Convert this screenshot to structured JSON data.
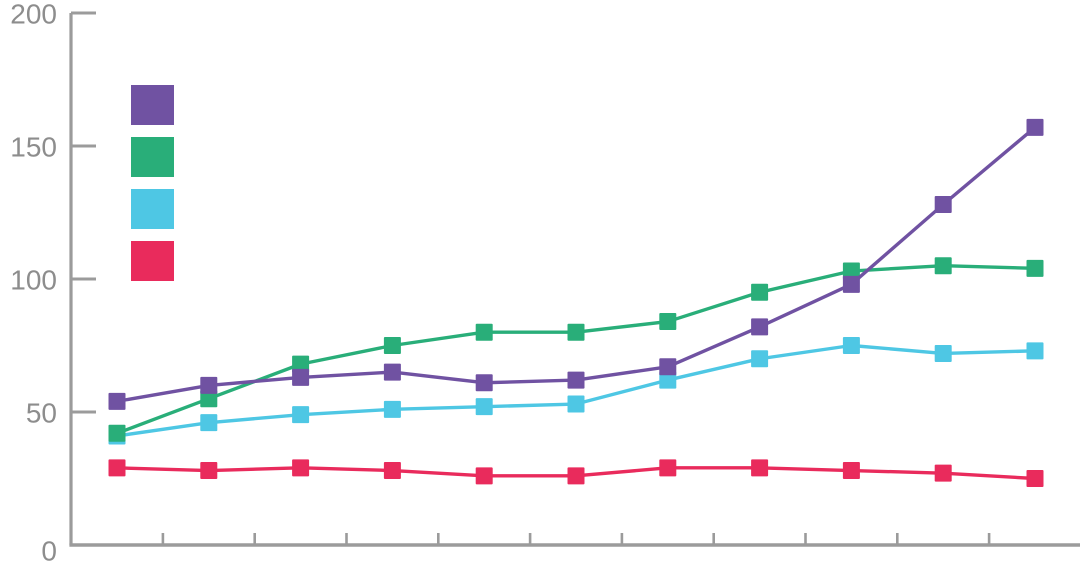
{
  "chart_data": {
    "type": "line",
    "title": "",
    "subtitle": "",
    "xlabel": "",
    "ylabel": "",
    "x": [
      1,
      2,
      3,
      4,
      5,
      6,
      7,
      8,
      9,
      10,
      11
    ],
    "x_tick_labels": [],
    "ylim": [
      0,
      200
    ],
    "y_ticks": [
      0,
      50,
      100,
      150,
      200
    ],
    "grid": false,
    "marker": "square",
    "legend": {
      "position": "top-left",
      "text_labels_visible": false
    },
    "series": [
      {
        "name": "purple-series",
        "color": "#7052a2",
        "values": [
          54,
          60,
          63,
          65,
          61,
          62,
          67,
          82,
          98,
          128,
          157
        ]
      },
      {
        "name": "green-series",
        "color": "#29ae79",
        "values": [
          42,
          55,
          68,
          75,
          80,
          80,
          84,
          95,
          103,
          105,
          104
        ]
      },
      {
        "name": "cyan-series",
        "color": "#4ec7e4",
        "values": [
          41,
          46,
          49,
          51,
          52,
          53,
          62,
          70,
          75,
          72,
          73
        ]
      },
      {
        "name": "red-series",
        "color": "#e92b5c",
        "values": [
          29,
          28,
          29,
          28,
          26,
          26,
          29,
          29,
          28,
          27,
          25
        ]
      }
    ]
  },
  "axes": {
    "axis_color": "#9b9b9b",
    "tick_label_color": "#8d8d8d",
    "y_tick_labels": [
      "0",
      "50",
      "100",
      "150",
      "200"
    ]
  }
}
